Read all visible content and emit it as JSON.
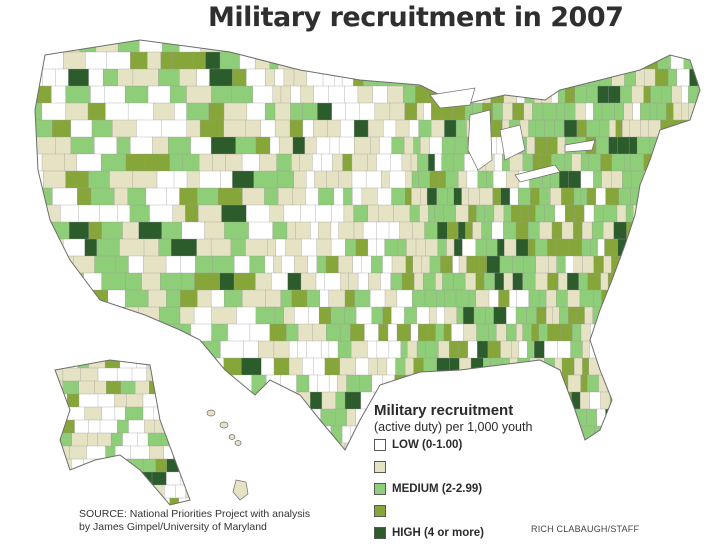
{
  "title": "Military recruitment in 2007",
  "legend": {
    "title": "Military recruitment",
    "subtitle": "(active duty) per 1,000 youth",
    "items": [
      {
        "label": "LOW (0-1.00)",
        "color": "#ffffff"
      },
      {
        "label": "",
        "color": "#e6e2c4"
      },
      {
        "label": "MEDIUM (2-2.99)",
        "color": "#8fce78"
      },
      {
        "label": "",
        "color": "#86a63a"
      },
      {
        "label": "HIGH (4 or more)",
        "color": "#2c5c2c"
      }
    ]
  },
  "source": {
    "line1": "SOURCE: National Priorities Project with analysis",
    "line2": "by James Gimpel/University of Maryland"
  },
  "credit": "RICH CLABAUGH/STAFF",
  "colors": {
    "background": "#ffffff",
    "border": "#7a7a7a",
    "water": "#ffffff"
  }
}
